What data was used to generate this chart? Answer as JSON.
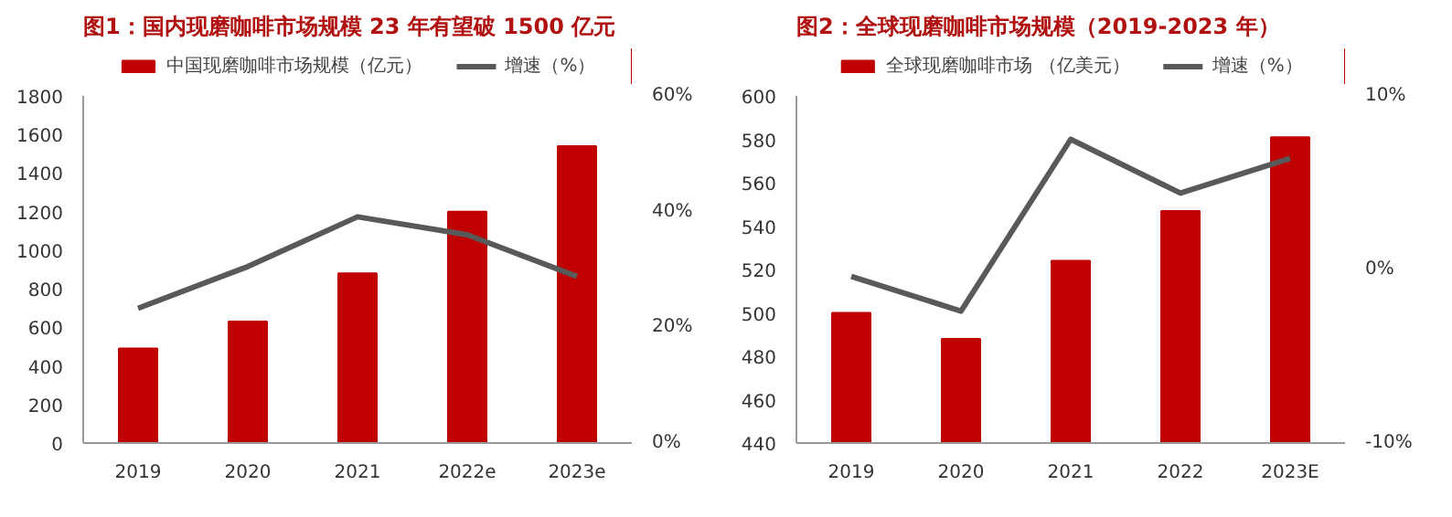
{
  "chart_data": [
    {
      "type": "bar",
      "title": "图1：国内现磨咖啡市场规模 23 年有望破 1500 亿元",
      "categories": [
        "2019",
        "2020",
        "2021",
        "2022e",
        "2023e"
      ],
      "series": [
        {
          "name": "中国现磨咖啡市场规模（亿元）",
          "type": "bar",
          "color": "#c00000",
          "values": [
            490,
            630,
            880,
            1200,
            1540
          ]
        },
        {
          "name": "增速（%）",
          "type": "line",
          "axis": "y2",
          "color": "#595959",
          "values": [
            23.3,
            30.5,
            39.1,
            36.0,
            28.8
          ]
        }
      ],
      "ylim": [
        0,
        1800
      ],
      "yticks": [
        0,
        200,
        400,
        600,
        800,
        1000,
        1200,
        1400,
        1600,
        1800
      ],
      "y2lim": [
        0,
        60
      ],
      "y2ticks": [
        {
          "value": 0,
          "label": "0%"
        },
        {
          "value": 20,
          "label": "20%"
        },
        {
          "value": 40,
          "label": "40%"
        },
        {
          "value": 60,
          "label": "60%"
        }
      ],
      "legend": "top",
      "grid": false
    },
    {
      "type": "bar",
      "title": "图2：全球现磨咖啡市场规模（2019-2023 年）",
      "categories": [
        "2019",
        "2020",
        "2021",
        "2022",
        "2023E"
      ],
      "series": [
        {
          "name": "全球现磨咖啡市场 （亿美元）",
          "type": "bar",
          "color": "#c00000",
          "values": [
            500,
            488,
            524,
            547,
            581
          ]
        },
        {
          "name": "增速（%）",
          "type": "line",
          "axis": "y2",
          "color": "#595959",
          "values": [
            -0.4,
            -2.4,
            7.5,
            4.4,
            6.4
          ]
        }
      ],
      "ylim": [
        440,
        600
      ],
      "yticks": [
        440,
        460,
        480,
        500,
        520,
        540,
        560,
        580,
        600
      ],
      "y2lim": [
        -10,
        10
      ],
      "y2ticks": [
        {
          "value": -10,
          "label": "-10%"
        },
        {
          "value": 0,
          "label": "0%"
        },
        {
          "value": 10,
          "label": "10%"
        }
      ],
      "legend": "top",
      "grid": false
    }
  ]
}
